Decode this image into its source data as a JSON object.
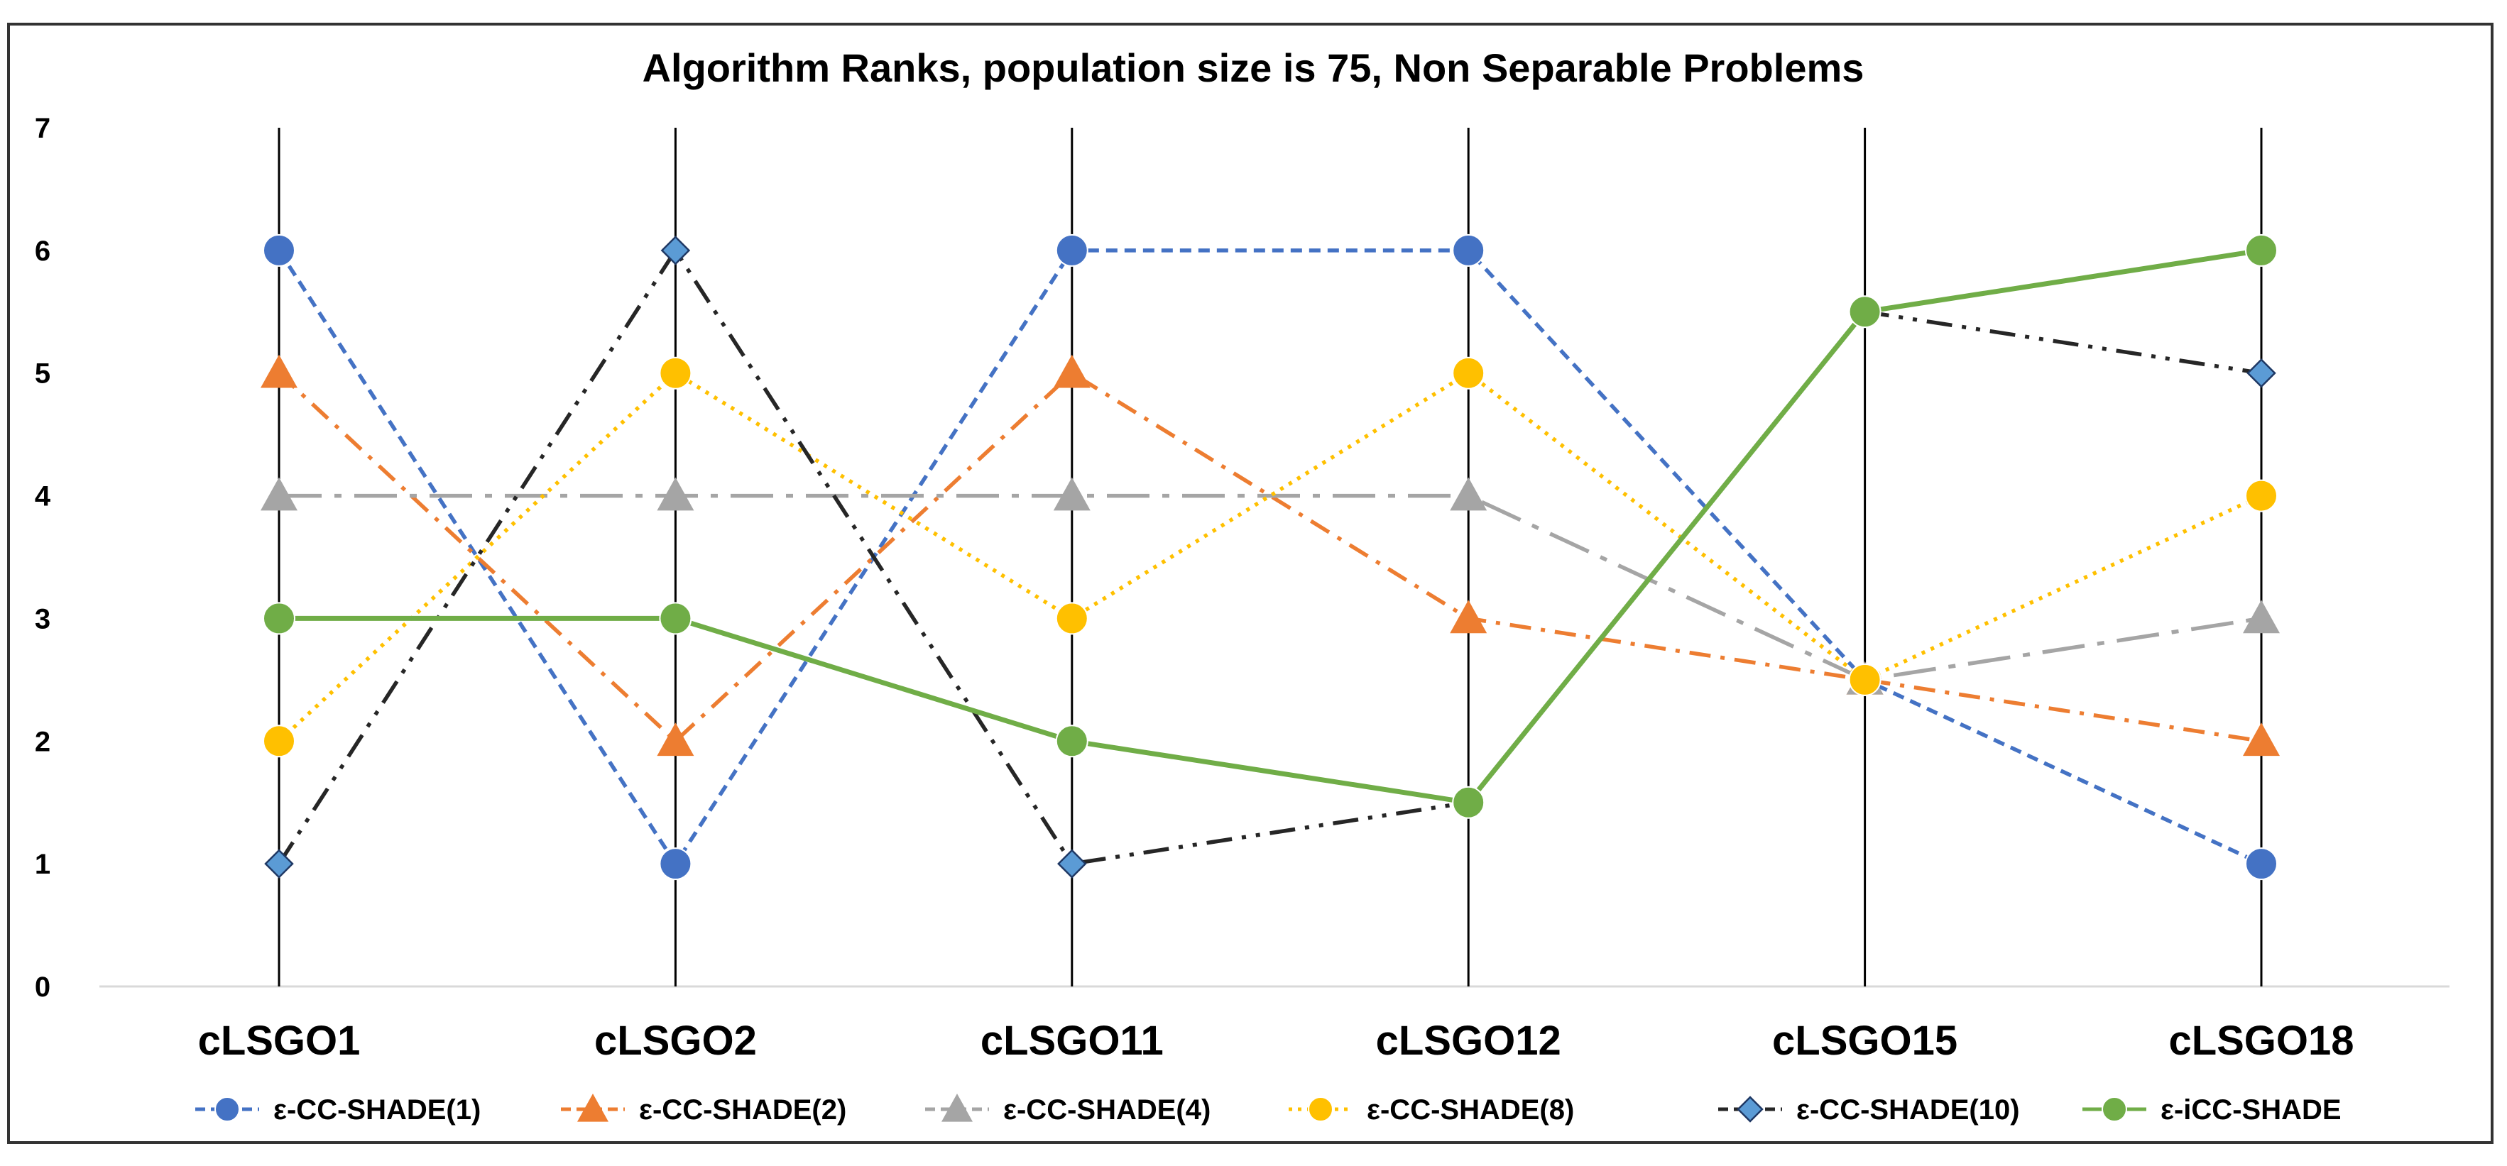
{
  "chart_data": {
    "type": "line",
    "title": "Algorithm Ranks, population size is 75, Non Separable Problems",
    "xlabel": "",
    "ylabel": "",
    "categories": [
      "cLSGO1",
      "cLSGO2",
      "cLSGO11",
      "cLSGO12",
      "cLSGO15",
      "cLSGO18"
    ],
    "ylim": [
      0,
      7
    ],
    "yticks": [
      "0",
      "1",
      "2",
      "3",
      "4",
      "5",
      "6",
      "7"
    ],
    "legend_position": "bottom",
    "series": [
      {
        "name": "ε-CC-SHADE(1)",
        "values": [
          6,
          1,
          6,
          6,
          2.5,
          1
        ],
        "color": "#4472C4",
        "marker": "circle",
        "dash": "short-dash"
      },
      {
        "name": "ε-CC-SHADE(2)",
        "values": [
          5,
          2,
          5,
          3,
          2.5,
          2
        ],
        "color": "#ED7D31",
        "marker": "triangle",
        "dash": "dash-dot"
      },
      {
        "name": "ε-CC-SHADE(4)",
        "values": [
          4,
          4,
          4,
          4,
          2.5,
          3
        ],
        "color": "#A5A5A5",
        "marker": "triangle",
        "dash": "long-dash-dot"
      },
      {
        "name": "ε-CC-SHADE(8)",
        "values": [
          2,
          5,
          3,
          5,
          2.5,
          4
        ],
        "color": "#FFC000",
        "marker": "circle",
        "dash": "dot"
      },
      {
        "name": "ε-CC-SHADE(10)",
        "values": [
          1,
          6,
          1,
          1.5,
          5.5,
          5
        ],
        "color": "#5B9BD5",
        "line_color": "#262626",
        "marker": "diamond",
        "dash": "long-dash-dot-dot"
      },
      {
        "name": "ε-iCC-SHADE",
        "values": [
          3,
          3,
          2,
          1.5,
          5.5,
          6
        ],
        "color": "#70AD47",
        "marker": "circle",
        "dash": "solid"
      }
    ]
  }
}
